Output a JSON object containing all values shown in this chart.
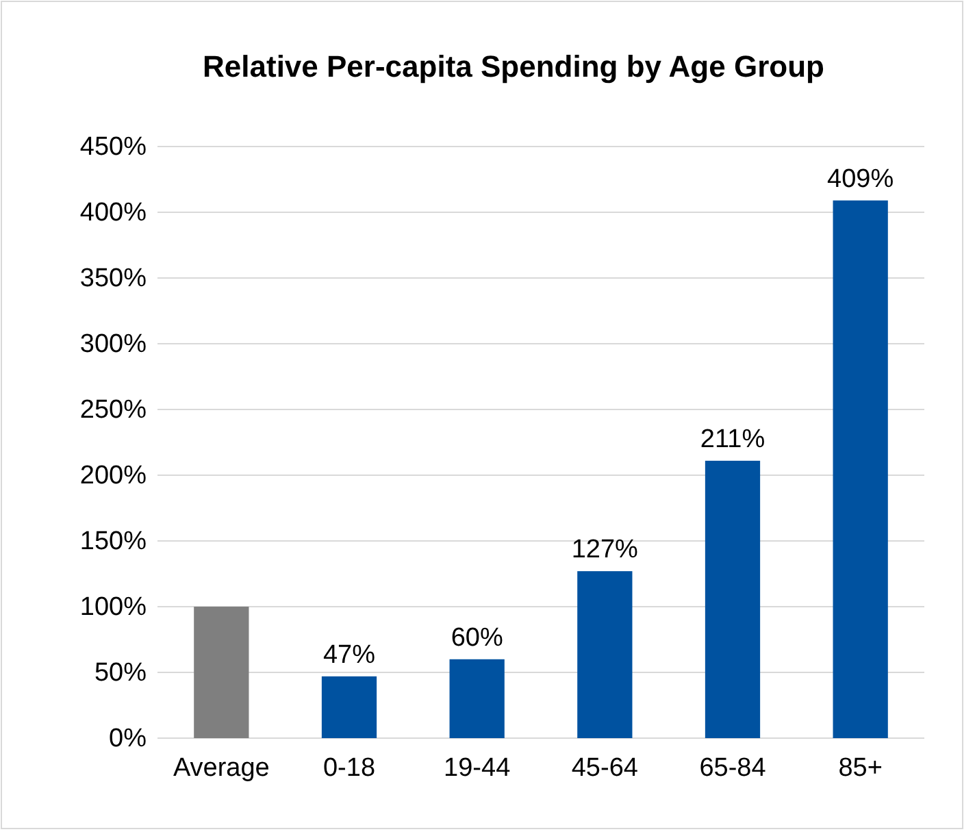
{
  "chart_data": {
    "type": "bar",
    "title": "Relative Per-capita Spending by Age Group",
    "categories": [
      "Average",
      "0-18",
      "19-44",
      "45-64",
      "65-84",
      "85+"
    ],
    "values": [
      100,
      47,
      60,
      127,
      211,
      409
    ],
    "colors": [
      "#7f7f7f",
      "#0052a0",
      "#0052a0",
      "#0052a0",
      "#0052a0",
      "#0052a0"
    ],
    "value_labels": [
      null,
      "47%",
      "60%",
      "127%",
      "211%",
      "409%"
    ],
    "ylim": [
      0,
      450
    ],
    "yticks": [
      {
        "value": 0,
        "label": "0%"
      },
      {
        "value": 50,
        "label": "50%"
      },
      {
        "value": 100,
        "label": "100%"
      },
      {
        "value": 150,
        "label": "150%"
      },
      {
        "value": 200,
        "label": "200%"
      },
      {
        "value": 250,
        "label": "250%"
      },
      {
        "value": 300,
        "label": "300%"
      },
      {
        "value": 350,
        "label": "350%"
      },
      {
        "value": 400,
        "label": "400%"
      },
      {
        "value": 450,
        "label": "450%"
      }
    ],
    "grid": "y"
  }
}
